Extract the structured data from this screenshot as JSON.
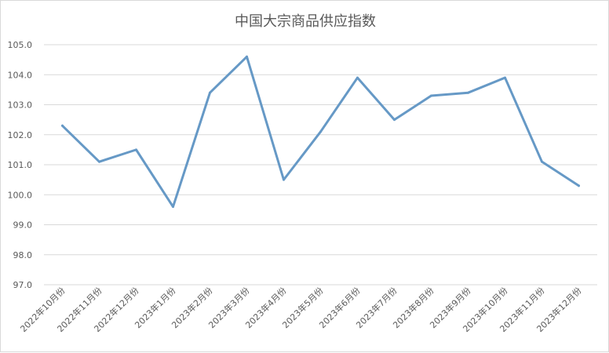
{
  "chart_data": {
    "type": "line",
    "title": "中国大宗商品供应指数",
    "xlabel": "",
    "ylabel": "",
    "ylim": [
      97.0,
      105.0
    ],
    "yticks": [
      "97.0",
      "98.0",
      "99.0",
      "100.0",
      "101.0",
      "102.0",
      "103.0",
      "104.0",
      "105.0"
    ],
    "grid": true,
    "legend": "none",
    "categories": [
      "2022年10月份",
      "2022年11月份",
      "2022年12月份",
      "2023年1月份",
      "2023年2月份",
      "2023年3月份",
      "2023年4月份",
      "2023年5月份",
      "2023年6月份",
      "2023年7月份",
      "2023年8月份",
      "2023年9月份",
      "2023年10月份",
      "2023年11月份",
      "2023年12月份"
    ],
    "series": [
      {
        "values": [
          102.3,
          101.1,
          101.5,
          99.6,
          103.4,
          104.6,
          100.5,
          102.1,
          103.9,
          102.5,
          103.3,
          103.4,
          103.9,
          101.1,
          100.3
        ],
        "color": "#6699c6"
      }
    ]
  }
}
